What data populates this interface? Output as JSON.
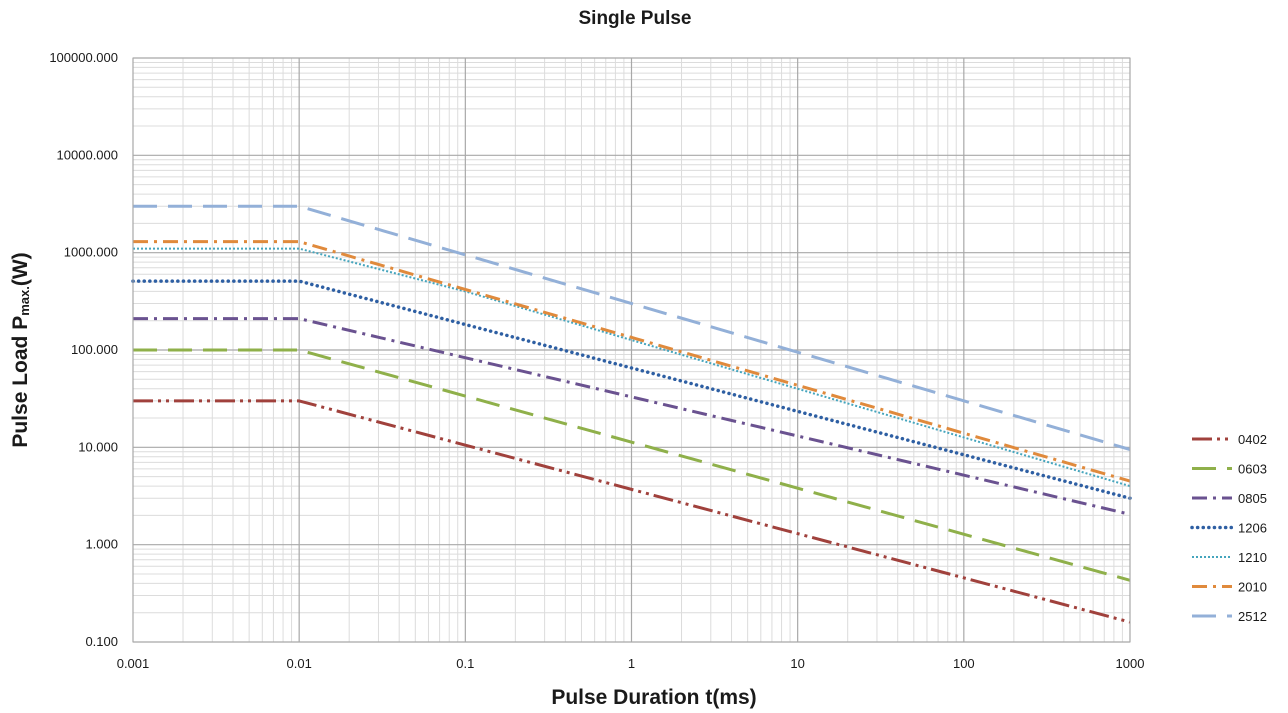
{
  "chart_data": {
    "type": "line",
    "title": "Single Pulse",
    "xlabel": "Pulse Duration  t(ms)",
    "ylabel": {
      "main": "Pulse Load  P",
      "subscript": "max.",
      "unit": "(W)"
    },
    "x_scale": "log",
    "y_scale": "log",
    "xlim": [
      0.001,
      1000
    ],
    "ylim": [
      0.1,
      100000
    ],
    "x_ticks": [
      "0.001",
      "0.01",
      "0.1",
      "1",
      "10",
      "100",
      "1000"
    ],
    "y_ticks": [
      "0.100",
      "1.000",
      "10.000",
      "100.000",
      "1000.000",
      "10000.000",
      "100000.000"
    ],
    "grid": true,
    "legend_position": "right",
    "series": [
      {
        "name": "0402",
        "color": "#a0413c",
        "dash": "dash-dot-dot",
        "x": [
          0.001,
          0.01,
          1000
        ],
        "y": [
          30,
          30,
          0.16
        ]
      },
      {
        "name": "0603",
        "color": "#8fb04a",
        "dash": "long-dash",
        "x": [
          0.001,
          0.01,
          1000
        ],
        "y": [
          100,
          100,
          0.43
        ]
      },
      {
        "name": "0805",
        "color": "#6a5290",
        "dash": "dash-dot",
        "x": [
          0.001,
          0.01,
          1000
        ],
        "y": [
          210,
          210,
          2.05
        ]
      },
      {
        "name": "1206",
        "color": "#2e5fa3",
        "dash": "round-dot",
        "x": [
          0.001,
          0.01,
          1000
        ],
        "y": [
          510,
          510,
          3.0
        ]
      },
      {
        "name": "1210",
        "color": "#45a5bd",
        "dash": "square-dot",
        "x": [
          0.001,
          0.01,
          0.1,
          1000
        ],
        "y": [
          1100,
          1100,
          400,
          4.0
        ]
      },
      {
        "name": "2010",
        "color": "#e08a3c",
        "dash": "dash-dot",
        "x": [
          0.001,
          0.01,
          1000
        ],
        "y": [
          1300,
          1300,
          4.5
        ]
      },
      {
        "name": "2512",
        "color": "#93b0d8",
        "dash": "long-dash",
        "x": [
          0.001,
          0.01,
          1000
        ],
        "y": [
          3000,
          3000,
          9.5
        ]
      }
    ]
  }
}
